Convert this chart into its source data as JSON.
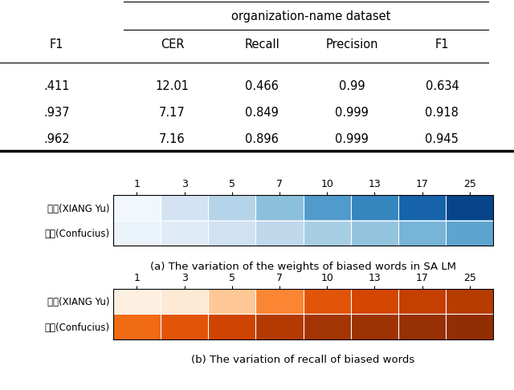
{
  "table": {
    "right_headers": [
      "CER",
      "Recall",
      "Precision",
      "F1"
    ],
    "left_header": "F1",
    "org_name_dataset": "organization-name dataset",
    "rows_left": [
      ".411",
      ".937",
      ".962"
    ],
    "rows_right": [
      [
        "12.01",
        "0.466",
        "0.99",
        "0.634"
      ],
      [
        "7.17",
        "0.849",
        "0.999",
        "0.918"
      ],
      [
        "7.16",
        "0.896",
        "0.999",
        "0.945"
      ]
    ]
  },
  "heatmap_a": {
    "x_ticks": [
      1,
      3,
      5,
      7,
      10,
      13,
      17,
      25
    ],
    "y_labels": [
      "项羽(XIANG Yu)",
      "孔子(Confucius)"
    ],
    "title": "(a) The variation of the weights of biased words in SA LM",
    "row1": [
      0.03,
      0.18,
      0.3,
      0.42,
      0.58,
      0.67,
      0.8,
      0.92
    ],
    "row2": [
      0.06,
      0.12,
      0.2,
      0.27,
      0.34,
      0.4,
      0.47,
      0.54
    ],
    "cmap": "Blues",
    "vmin": 0.0,
    "vmax": 1.0
  },
  "heatmap_b": {
    "x_ticks": [
      1,
      3,
      5,
      7,
      10,
      13,
      17,
      25
    ],
    "y_labels": [
      "项羽(XIANG Yu)",
      "孔子(Confucius)"
    ],
    "title": "(b) The variation of recall of biased words",
    "row1": [
      0.04,
      0.1,
      0.28,
      0.52,
      0.7,
      0.76,
      0.8,
      0.83
    ],
    "row2": [
      0.62,
      0.7,
      0.77,
      0.84,
      0.88,
      0.9,
      0.92,
      0.94
    ],
    "cmap": "Oranges",
    "vmin": 0.0,
    "vmax": 1.0
  },
  "bg_color": "#ffffff"
}
